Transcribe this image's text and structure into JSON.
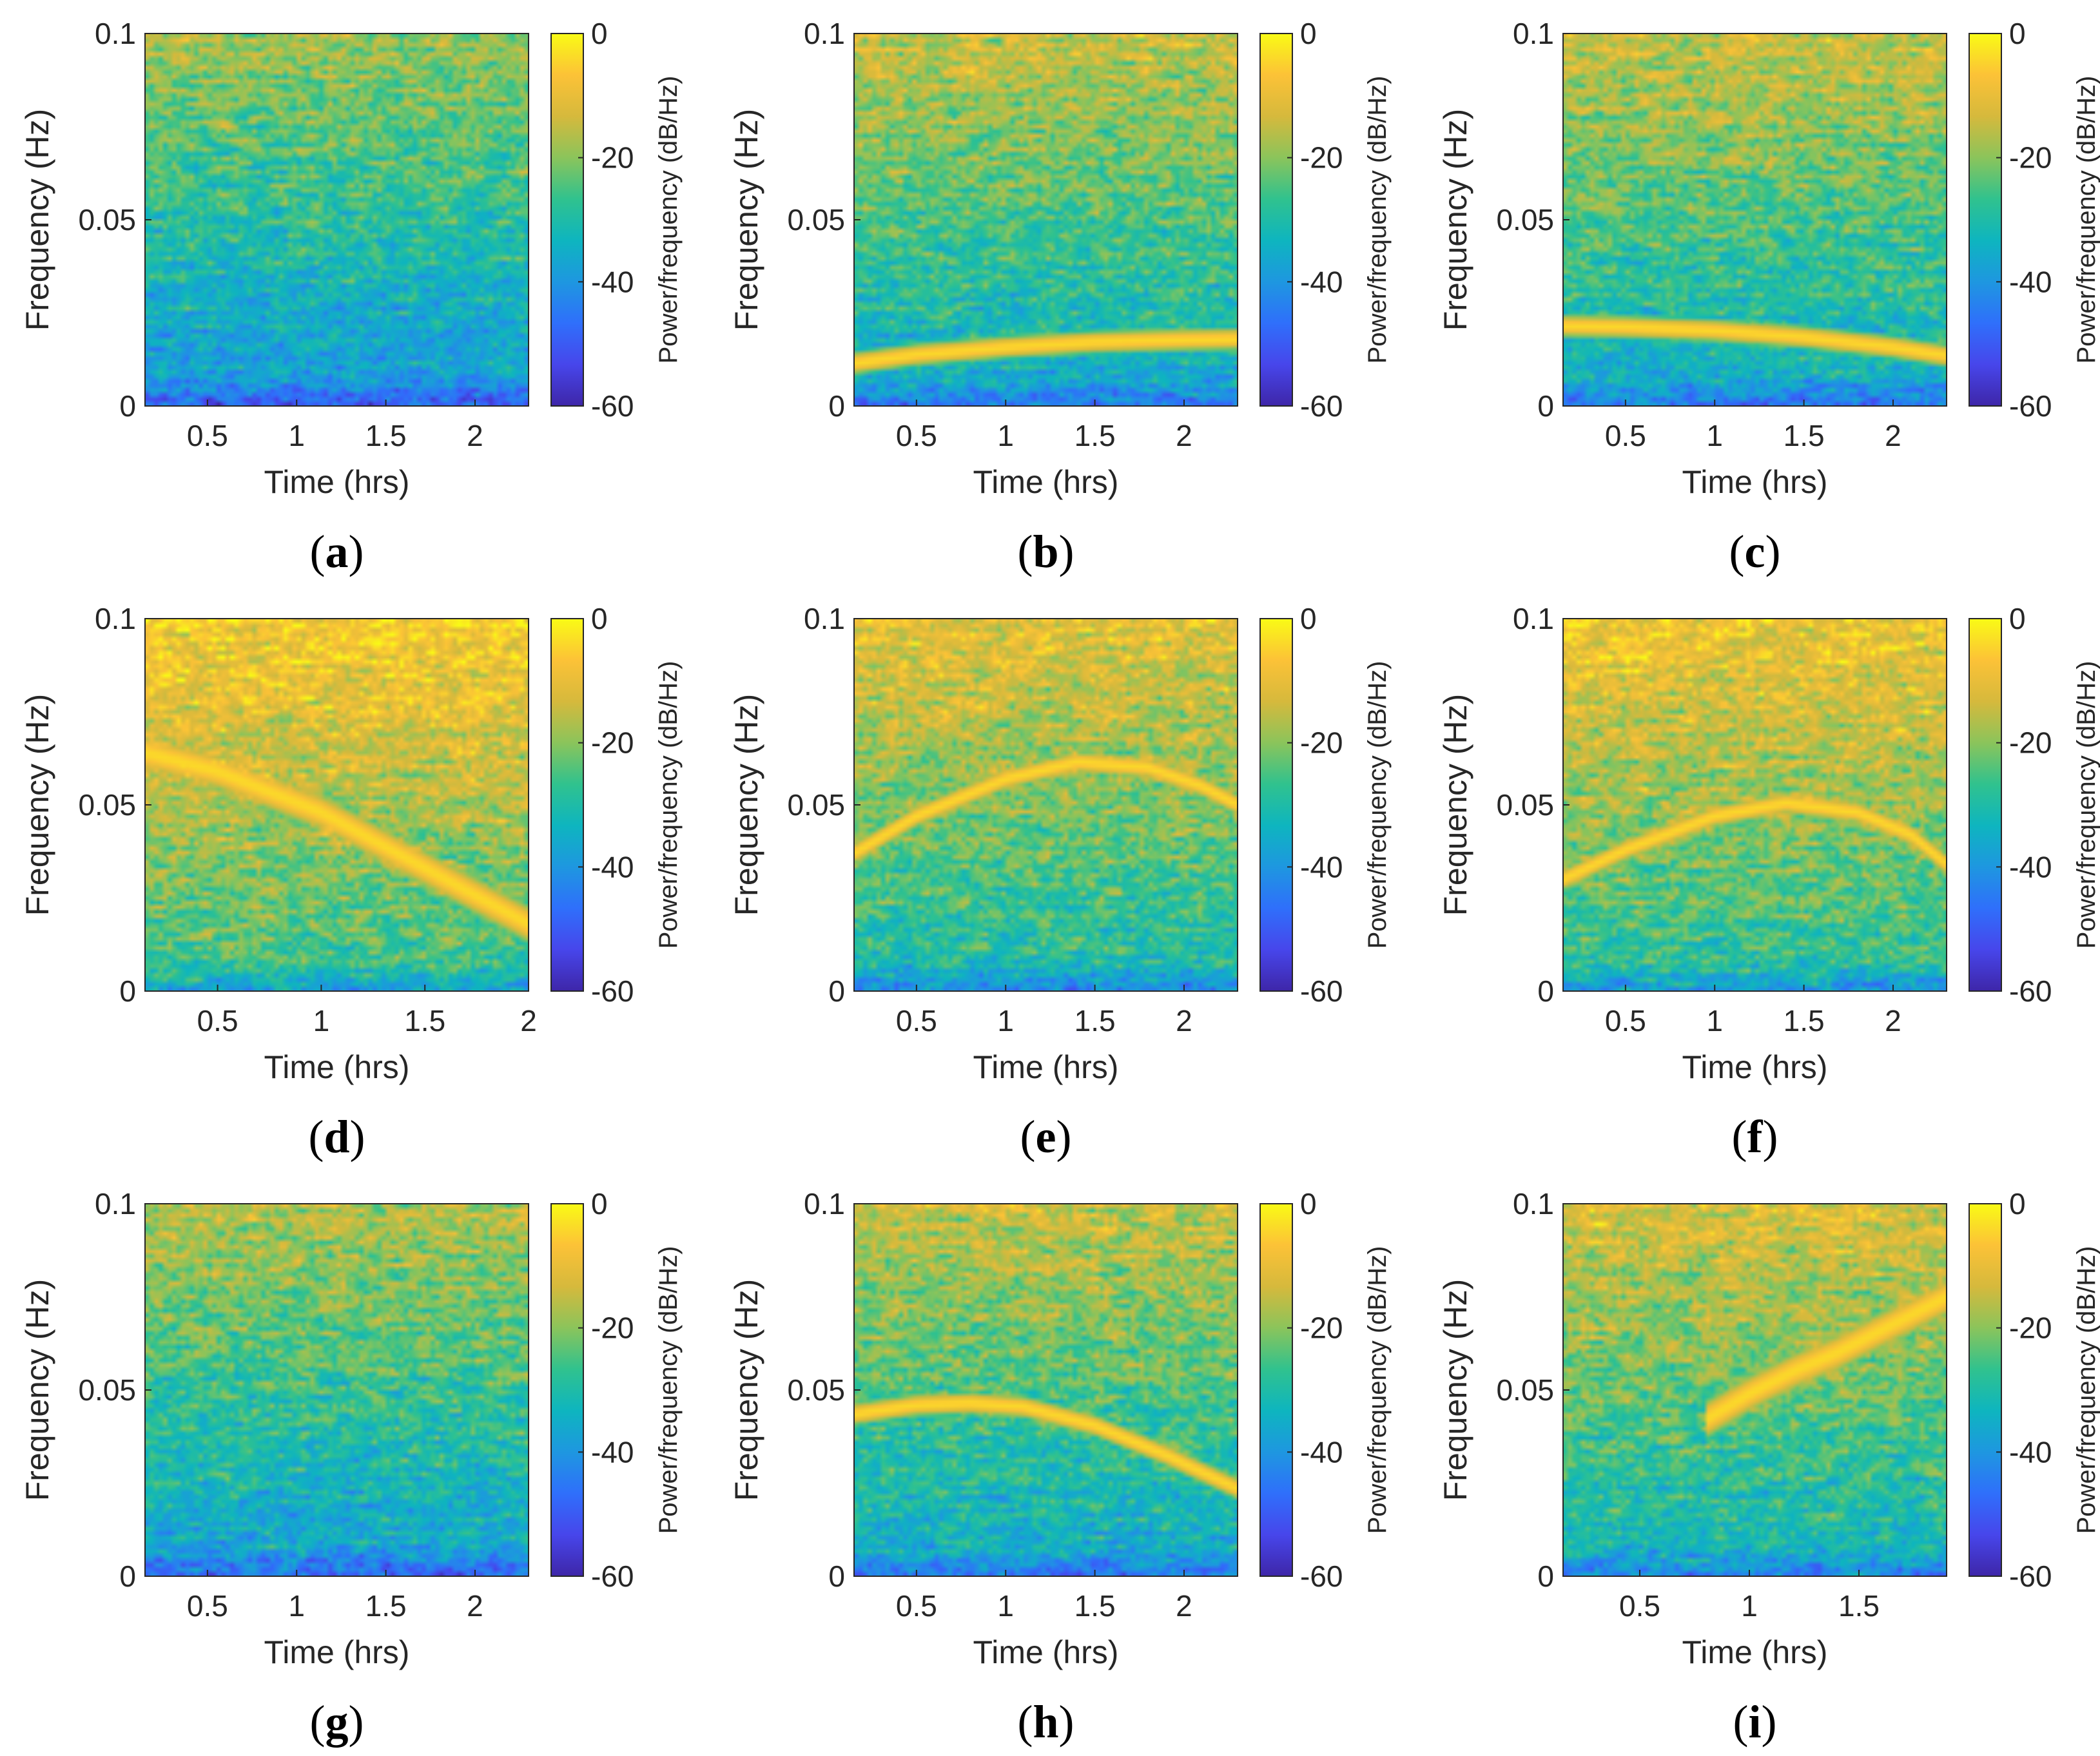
{
  "colors": {
    "parula": [
      "#3e26a8",
      "#4746eb",
      "#2f6ffb",
      "#1e97e0",
      "#0eb5bf",
      "#30c28e",
      "#8bc45b",
      "#d6b93c",
      "#fcc237",
      "#f9fb15"
    ],
    "background": "#ffffff",
    "axis": "#262626"
  },
  "chart_data": [
    {
      "id": "a",
      "label": "a",
      "type": "heatmap",
      "xlabel": "Time (hrs)",
      "ylabel": "Frequency (Hz)",
      "colorbar_label": "Power/frequency (dB/Hz)",
      "xlim": [
        0.15,
        2.3
      ],
      "ylim": [
        0,
        0.1
      ],
      "clim": [
        -60,
        0
      ],
      "xticks": [
        0.5,
        1,
        1.5,
        2
      ],
      "xtick_labels": [
        "0.5",
        "1",
        "1.5",
        "2"
      ],
      "yticks": [
        0,
        0.05,
        0.1
      ],
      "ytick_labels": [
        "0",
        "0.05",
        "0.1"
      ],
      "cticks": [
        -60,
        -40,
        -20,
        0
      ],
      "ctick_labels": [
        "-60",
        "-40",
        "-20",
        "0"
      ],
      "noise_level": 0,
      "track": null
    },
    {
      "id": "b",
      "label": "b",
      "type": "heatmap",
      "xlabel": "Time (hrs)",
      "ylabel": "Frequency (Hz)",
      "colorbar_label": "Power/frequency (dB/Hz)",
      "xlim": [
        0.15,
        2.3
      ],
      "ylim": [
        0,
        0.1
      ],
      "clim": [
        -60,
        0
      ],
      "xticks": [
        0.5,
        1,
        1.5,
        2
      ],
      "xtick_labels": [
        "0.5",
        "1",
        "1.5",
        "2"
      ],
      "yticks": [
        0,
        0.05,
        0.1
      ],
      "ytick_labels": [
        "0",
        "0.05",
        "0.1"
      ],
      "cticks": [
        -60,
        -40,
        -20,
        0
      ],
      "ctick_labels": [
        "-60",
        "-40",
        "-20",
        "0"
      ],
      "noise_level": 1,
      "track": {
        "t": [
          0.15,
          0.5,
          1.0,
          1.5,
          2.0,
          2.3
        ],
        "f": [
          0.0115,
          0.0138,
          0.0158,
          0.0172,
          0.0178,
          0.018
        ]
      }
    },
    {
      "id": "c",
      "label": "c",
      "type": "heatmap",
      "xlabel": "Time (hrs)",
      "ylabel": "Frequency (Hz)",
      "colorbar_label": "Power/frequency (dB/Hz)",
      "xlim": [
        0.15,
        2.3
      ],
      "ylim": [
        0,
        0.1
      ],
      "clim": [
        -60,
        0
      ],
      "xticks": [
        0.5,
        1,
        1.5,
        2
      ],
      "xtick_labels": [
        "0.5",
        "1",
        "1.5",
        "2"
      ],
      "yticks": [
        0,
        0.05,
        0.1
      ],
      "ytick_labels": [
        "0",
        "0.05",
        "0.1"
      ],
      "cticks": [
        -60,
        -40,
        -20,
        0
      ],
      "ctick_labels": [
        "-60",
        "-40",
        "-20",
        "0"
      ],
      "noise_level": 1,
      "track": {
        "t": [
          0.15,
          0.5,
          1.0,
          1.5,
          2.0,
          2.3
        ],
        "f": [
          0.0215,
          0.0212,
          0.0203,
          0.0185,
          0.0158,
          0.0135
        ]
      }
    },
    {
      "id": "d",
      "label": "d",
      "type": "heatmap",
      "xlabel": "Time (hrs)",
      "ylabel": "Frequency (Hz)",
      "colorbar_label": "Power/frequency (dB/Hz)",
      "xlim": [
        0.15,
        2.0
      ],
      "ylim": [
        0,
        0.1
      ],
      "clim": [
        -60,
        0
      ],
      "xticks": [
        0.5,
        1,
        1.5,
        2
      ],
      "xtick_labels": [
        "0.5",
        "1",
        "1.5",
        "2"
      ],
      "yticks": [
        0,
        0.05,
        0.1
      ],
      "ytick_labels": [
        "0",
        "0.05",
        "0.1"
      ],
      "cticks": [
        -60,
        -40,
        -20,
        0
      ],
      "ctick_labels": [
        "-60",
        "-40",
        "-20",
        "0"
      ],
      "noise_level": 3,
      "track": {
        "t": [
          0.15,
          0.5,
          1.0,
          1.5,
          2.0
        ],
        "f": [
          0.064,
          0.059,
          0.048,
          0.033,
          0.018
        ]
      }
    },
    {
      "id": "e",
      "label": "e",
      "type": "heatmap",
      "xlabel": "Time (hrs)",
      "ylabel": "Frequency (Hz)",
      "colorbar_label": "Power/frequency (dB/Hz)",
      "xlim": [
        0.15,
        2.3
      ],
      "ylim": [
        0,
        0.1
      ],
      "clim": [
        -60,
        0
      ],
      "xticks": [
        0.5,
        1,
        1.5,
        2
      ],
      "xtick_labels": [
        "0.5",
        "1",
        "1.5",
        "2"
      ],
      "yticks": [
        0,
        0.05,
        0.1
      ],
      "ytick_labels": [
        "0",
        "0.05",
        "0.1"
      ],
      "cticks": [
        -60,
        -40,
        -20,
        0
      ],
      "ctick_labels": [
        "-60",
        "-40",
        "-20",
        "0"
      ],
      "noise_level": 2,
      "track": {
        "t": [
          0.15,
          0.5,
          1.0,
          1.4,
          1.8,
          2.1,
          2.3
        ],
        "f": [
          0.037,
          0.047,
          0.057,
          0.0615,
          0.06,
          0.055,
          0.05
        ]
      }
    },
    {
      "id": "f",
      "label": "f",
      "type": "heatmap",
      "xlabel": "Time (hrs)",
      "ylabel": "Frequency (Hz)",
      "colorbar_label": "Power/frequency (dB/Hz)",
      "xlim": [
        0.15,
        2.3
      ],
      "ylim": [
        0,
        0.1
      ],
      "clim": [
        -60,
        0
      ],
      "xticks": [
        0.5,
        1,
        1.5,
        2
      ],
      "xtick_labels": [
        "0.5",
        "1",
        "1.5",
        "2"
      ],
      "yticks": [
        0,
        0.05,
        0.1
      ],
      "ytick_labels": [
        "0",
        "0.05",
        "0.1"
      ],
      "cticks": [
        -60,
        -40,
        -20,
        0
      ],
      "ctick_labels": [
        "-60",
        "-40",
        "-20",
        "0"
      ],
      "noise_level": 2.5,
      "track": {
        "t": [
          0.15,
          0.5,
          1.0,
          1.4,
          1.8,
          2.1,
          2.3
        ],
        "f": [
          0.03,
          0.038,
          0.047,
          0.0505,
          0.048,
          0.042,
          0.034
        ]
      }
    },
    {
      "id": "g",
      "label": "g",
      "type": "heatmap",
      "xlabel": "Time (hrs)",
      "ylabel": "Frequency (Hz)",
      "colorbar_label": "Power/frequency (dB/Hz)",
      "xlim": [
        0.15,
        2.3
      ],
      "ylim": [
        0,
        0.1
      ],
      "clim": [
        -60,
        0
      ],
      "xticks": [
        0.5,
        1,
        1.5,
        2
      ],
      "xtick_labels": [
        "0.5",
        "1",
        "1.5",
        "2"
      ],
      "yticks": [
        0,
        0.05,
        0.1
      ],
      "ytick_labels": [
        "0",
        "0.05",
        "0.1"
      ],
      "cticks": [
        -60,
        -40,
        -20,
        0
      ],
      "ctick_labels": [
        "-60",
        "-40",
        "-20",
        "0"
      ],
      "noise_level": 0.5,
      "track": null
    },
    {
      "id": "h",
      "label": "h",
      "type": "heatmap",
      "xlabel": "Time (hrs)",
      "ylabel": "Frequency (Hz)",
      "colorbar_label": "Power/frequency (dB/Hz)",
      "xlim": [
        0.15,
        2.3
      ],
      "ylim": [
        0,
        0.1
      ],
      "clim": [
        -60,
        0
      ],
      "xticks": [
        0.5,
        1,
        1.5,
        2
      ],
      "xtick_labels": [
        "0.5",
        "1",
        "1.5",
        "2"
      ],
      "yticks": [
        0,
        0.05,
        0.1
      ],
      "ytick_labels": [
        "0",
        "0.05",
        "0.1"
      ],
      "cticks": [
        -60,
        -40,
        -20,
        0
      ],
      "ctick_labels": [
        "-60",
        "-40",
        "-20",
        "0"
      ],
      "noise_level": 1,
      "track": {
        "t": [
          0.15,
          0.5,
          0.8,
          1.1,
          1.5,
          1.9,
          2.3
        ],
        "f": [
          0.0435,
          0.046,
          0.0465,
          0.0455,
          0.0405,
          0.0325,
          0.0235
        ]
      }
    },
    {
      "id": "i",
      "label": "i",
      "type": "heatmap",
      "xlabel": "Time (hrs)",
      "ylabel": "Frequency (Hz)",
      "colorbar_label": "Power/frequency (dB/Hz)",
      "xlim": [
        0.15,
        1.9
      ],
      "ylim": [
        0,
        0.1
      ],
      "clim": [
        -60,
        0
      ],
      "xticks": [
        0.5,
        1,
        1.5
      ],
      "xtick_labels": [
        "0.5",
        "1",
        "1.5"
      ],
      "yticks": [
        0,
        0.05,
        0.1
      ],
      "ytick_labels": [
        "0",
        "0.05",
        "0.1"
      ],
      "cticks": [
        -60,
        -40,
        -20,
        0
      ],
      "ctick_labels": [
        "-60",
        "-40",
        "-20",
        "0"
      ],
      "noise_level": 1.5,
      "track": {
        "t": [
          0.8,
          1.0,
          1.2,
          1.4,
          1.6,
          1.8,
          1.9
        ],
        "f": [
          0.042,
          0.049,
          0.055,
          0.06,
          0.066,
          0.072,
          0.075
        ]
      }
    }
  ]
}
